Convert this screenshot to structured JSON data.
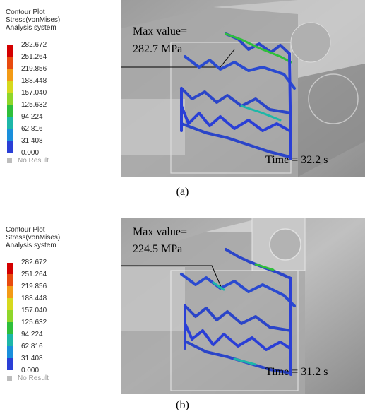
{
  "legend": {
    "title_lines": [
      "Contour Plot",
      "Stress(vonMises)",
      "Analysis system"
    ],
    "scale_values": [
      "282.672",
      "251.264",
      "219.856",
      "188.448",
      "157.040",
      "125.632",
      "94.224",
      "62.816",
      "31.408",
      "0.000"
    ],
    "no_result": "No Result",
    "scale_colors": [
      "#d40000",
      "#e84b0f",
      "#f39b16",
      "#d6d91e",
      "#8fd62a",
      "#2fbf3b",
      "#1db7a8",
      "#1a8fdc",
      "#2a3fd6",
      "#1a1a8c"
    ],
    "no_result_color": "#bdbdbd"
  },
  "panels": [
    {
      "max_label": "Max value=",
      "max_value": "282.7 MPa",
      "time": "Time = 32.2 s",
      "caption": "(a)"
    },
    {
      "max_label": "Max value=",
      "max_value": "224.5 MPa",
      "time": "Time = 31.2 s",
      "caption": "(b)"
    }
  ]
}
